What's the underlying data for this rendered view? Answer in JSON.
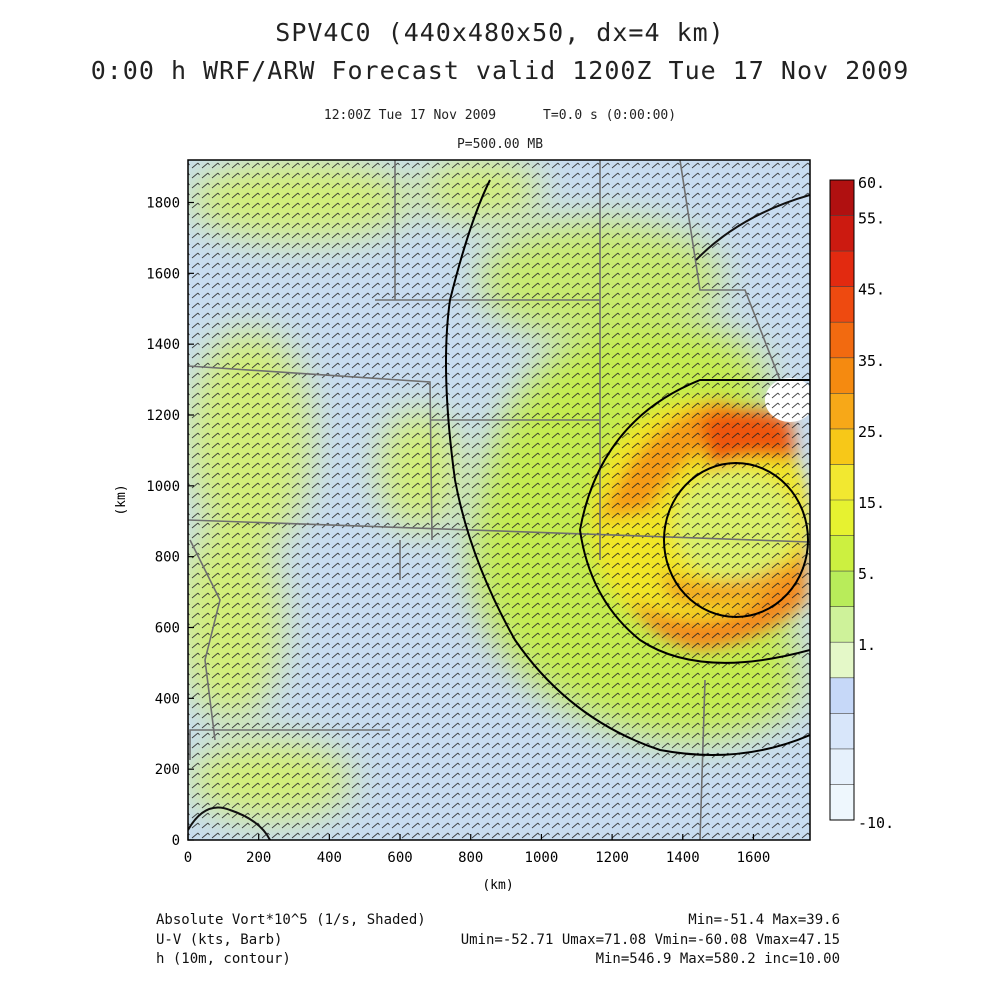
{
  "header": {
    "title": "SPV4C0 (440x480x50, dx=4 km)",
    "subtitle": "0:00 h WRF/ARW Forecast valid 1200Z Tue 17 Nov 2009",
    "time_line": "12:00Z Tue 17 Nov 2009      T=0.0 s (0:00:00)",
    "level": "P=500.00 MB"
  },
  "axes": {
    "xlabel": "(km)",
    "ylabel": "(km)",
    "x_ticks": [
      "0",
      "200",
      "400",
      "600",
      "800",
      "1000",
      "1200",
      "1400",
      "1600"
    ],
    "y_ticks": [
      "0",
      "200",
      "400",
      "600",
      "800",
      "1000",
      "1200",
      "1400",
      "1600",
      "1800"
    ],
    "xlim": [
      0,
      1760
    ],
    "ylim": [
      0,
      1920
    ]
  },
  "colorbar": {
    "labels": [
      "60.",
      "55.",
      "45.",
      "35.",
      "25.",
      "15.",
      "5.",
      "1.",
      "-10."
    ],
    "colors": [
      "#b01010",
      "#cc1a10",
      "#e22a10",
      "#ee4a10",
      "#f26a10",
      "#f58a10",
      "#f7a818",
      "#f7c818",
      "#f2e830",
      "#e6f230",
      "#ccf040",
      "#b8ec5a",
      "#cef29a",
      "#e4f8c8",
      "#c6d8f8",
      "#d8e6fa",
      "#e6f1fc",
      "#eef7fd"
    ]
  },
  "footer": {
    "left": [
      "Absolute Vort*10^5 (1/s, Shaded)",
      "U-V (kts, Barb)",
      "h (10m, contour)"
    ],
    "right": [
      "Min=-51.4 Max=39.6",
      "Umin=-52.71 Umax=71.08 Vmin=-60.08 Vmax=47.15",
      "Min=546.9 Max=580.2 inc=10.00"
    ]
  },
  "colors": {
    "background_field": "#c8dcf0",
    "contour": "#000000",
    "state_borders": "#6e6e6e"
  }
}
